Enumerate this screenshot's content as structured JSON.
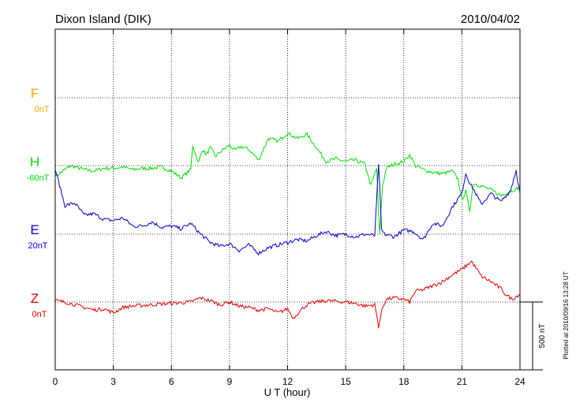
{
  "chart_data": {
    "type": "line",
    "title": "Dixon Island (DIK)",
    "date": "2010/04/02",
    "xlabel": "U T (hour)",
    "xlim": [
      0,
      24
    ],
    "x_ticks": [
      0,
      3,
      6,
      9,
      12,
      15,
      18,
      21,
      24
    ],
    "x_tick_labels": [
      "0",
      "3",
      "6",
      "9",
      "12",
      "15",
      "18",
      "21",
      "24"
    ],
    "scale_bar_label": "500 nT",
    "plot_note": "Plotted at 2010/09/16 13:28 UT",
    "grid": true,
    "series": [
      {
        "name": "F",
        "baseline_label": "0nT",
        "color": "#ffa500",
        "x": [],
        "values": []
      },
      {
        "name": "H",
        "baseline_label": "-60nT",
        "color": "#00e000",
        "x": [
          0,
          0.3,
          0.8,
          1.5,
          2,
          2.5,
          3,
          3.5,
          4,
          4.5,
          5,
          5.5,
          6,
          6.5,
          7,
          7.1,
          7.4,
          7.6,
          7.8,
          8,
          8.3,
          8.6,
          9,
          9.3,
          9.6,
          10,
          10.5,
          11,
          11.5,
          12,
          12.5,
          13,
          13.5,
          14,
          14.5,
          15,
          15.5,
          16,
          16.3,
          16.6,
          16.75,
          16.9,
          17.1,
          17.5,
          18,
          18.3,
          18.6,
          19,
          19.5,
          20,
          20.5,
          20.8,
          21,
          21.2,
          21.4,
          21.6,
          22,
          22.5,
          23,
          23.5,
          24
        ],
        "values": [
          -80,
          -50,
          0,
          -30,
          -40,
          -20,
          -20,
          -10,
          -30,
          -20,
          -20,
          -10,
          -40,
          -90,
          -30,
          150,
          20,
          120,
          80,
          130,
          70,
          110,
          150,
          110,
          140,
          120,
          40,
          200,
          180,
          240,
          200,
          230,
          130,
          30,
          50,
          30,
          40,
          10,
          -150,
          -20,
          -510,
          -150,
          -20,
          10,
          30,
          80,
          0,
          -30,
          -50,
          -60,
          -40,
          -100,
          -250,
          -190,
          -330,
          -130,
          -150,
          -180,
          -220,
          -190,
          -160
        ]
      },
      {
        "name": "E",
        "baseline_label": "20nT",
        "color": "#0000cc",
        "x": [
          0,
          0.5,
          1,
          1.5,
          2,
          2.5,
          3,
          3.5,
          4,
          4.5,
          5,
          5.5,
          6,
          6.5,
          7,
          7.5,
          8,
          8.5,
          9,
          9.5,
          10,
          10.5,
          11,
          11.5,
          12,
          12.5,
          13,
          13.5,
          14,
          14.5,
          15,
          15.5,
          16,
          16.5,
          16.7,
          16.85,
          17,
          17.5,
          18,
          18.5,
          19,
          19.5,
          20,
          20.5,
          21,
          21.2,
          21.4,
          21.6,
          22,
          22.5,
          23,
          23.5,
          23.8,
          24
        ],
        "values": [
          480,
          210,
          230,
          140,
          150,
          110,
          100,
          120,
          60,
          60,
          90,
          50,
          60,
          40,
          80,
          0,
          -60,
          -90,
          -70,
          -120,
          -80,
          -140,
          -100,
          -80,
          -60,
          -40,
          -50,
          -10,
          20,
          -10,
          0,
          -20,
          0,
          -10,
          520,
          30,
          0,
          -20,
          30,
          20,
          -40,
          80,
          60,
          200,
          300,
          450,
          380,
          330,
          220,
          300,
          240,
          320,
          470,
          300
        ]
      },
      {
        "name": "Z",
        "baseline_label": "0nT",
        "color": "#e00000",
        "x": [
          0,
          0.5,
          1,
          1.5,
          2,
          2.5,
          3,
          3.5,
          4,
          5,
          6,
          7,
          7.5,
          8,
          8.5,
          9,
          9.5,
          10,
          10.5,
          11,
          11.5,
          12,
          12.3,
          12.6,
          13,
          13.5,
          14,
          15,
          15.5,
          16,
          16.5,
          16.7,
          16.9,
          17.1,
          17.5,
          18,
          18.3,
          18.6,
          19,
          19.5,
          20,
          20.5,
          21,
          21.5,
          22,
          22.5,
          23,
          23.3,
          23.6,
          24
        ],
        "values": [
          10,
          0,
          -20,
          -40,
          -60,
          -50,
          -80,
          -40,
          -30,
          -20,
          -10,
          0,
          30,
          10,
          -20,
          0,
          -30,
          -40,
          -60,
          -50,
          -80,
          -50,
          -120,
          -70,
          -20,
          0,
          10,
          0,
          -10,
          -30,
          -20,
          -180,
          -40,
          20,
          30,
          20,
          0,
          80,
          90,
          120,
          150,
          200,
          240,
          300,
          190,
          150,
          100,
          50,
          20,
          60
        ]
      }
    ]
  }
}
